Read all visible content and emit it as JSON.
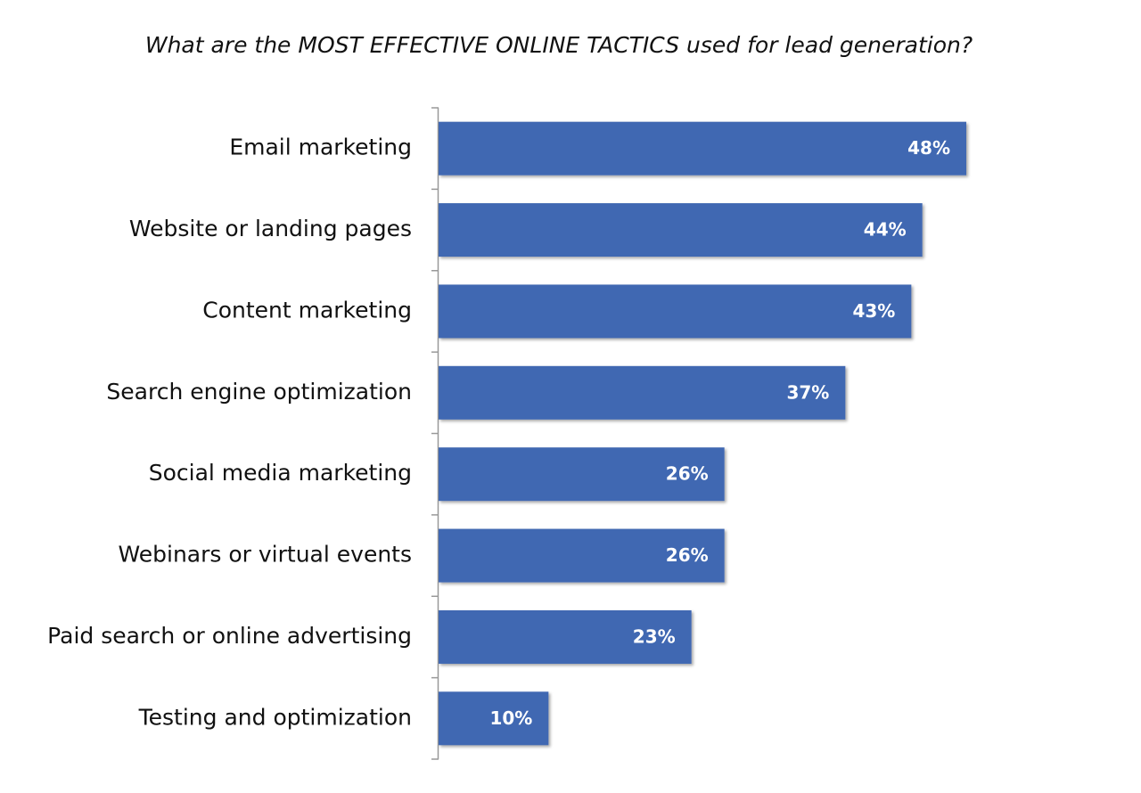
{
  "chart_data": {
    "type": "hbar",
    "title": "What are the MOST EFFECTIVE ONLINE TACTICS used for lead generation?",
    "categories": [
      "Email marketing",
      "Website or landing pages",
      "Content marketing",
      "Search engine optimization",
      "Social media marketing",
      "Webinars or virtual events",
      "Paid search or online advertising",
      "Testing and optimization"
    ],
    "values": [
      48,
      44,
      43,
      37,
      26,
      26,
      23,
      10
    ],
    "value_labels": [
      "48%",
      "44%",
      "43%",
      "37%",
      "26%",
      "26%",
      "23%",
      "10%"
    ],
    "color": "#4068b2"
  }
}
